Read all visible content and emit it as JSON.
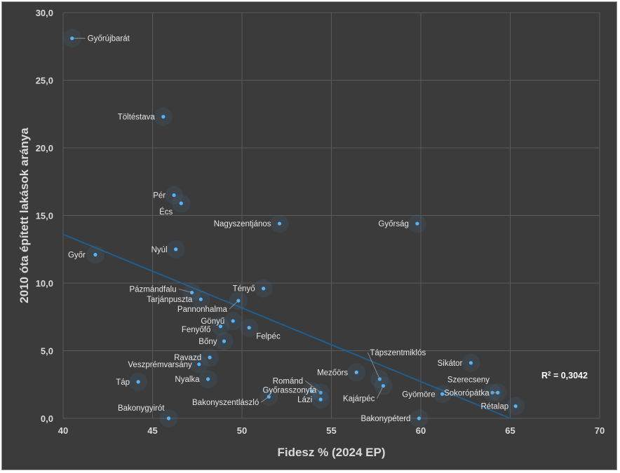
{
  "chart_data": {
    "type": "scatter",
    "xlabel": "Fidesz % (2024 EP)",
    "ylabel": "2010 óta épített lakások aránya",
    "xlim": [
      40,
      70
    ],
    "ylim": [
      0,
      30
    ],
    "xticks": [
      "40",
      "45",
      "50",
      "55",
      "60",
      "65",
      "70"
    ],
    "yticks": [
      "0,0",
      "5,0",
      "10,0",
      "15,0",
      "20,0",
      "25,0",
      "30,0"
    ],
    "trendline": {
      "type": "linear",
      "r2_prefix": "R",
      "r2_sup": "2",
      "r2_value": " = 0,3042"
    },
    "points": [
      {
        "name": "Győrújbarát",
        "x": 40.5,
        "y": 28.1
      },
      {
        "name": "Töltéstava",
        "x": 45.6,
        "y": 22.3
      },
      {
        "name": "Pér",
        "x": 46.2,
        "y": 16.5
      },
      {
        "name": "Écs",
        "x": 46.6,
        "y": 15.9
      },
      {
        "name": "Nagyszentjános",
        "x": 52.1,
        "y": 14.4
      },
      {
        "name": "Győrság",
        "x": 59.8,
        "y": 14.4
      },
      {
        "name": "Nyúl",
        "x": 46.3,
        "y": 12.5
      },
      {
        "name": "Győr",
        "x": 41.8,
        "y": 12.1
      },
      {
        "name": "Pázmándfalu",
        "x": 47.2,
        "y": 9.3
      },
      {
        "name": "Tényő",
        "x": 51.2,
        "y": 9.6
      },
      {
        "name": "Tarjánpuszta",
        "x": 47.7,
        "y": 8.8
      },
      {
        "name": "Pannonhalma",
        "x": 49.8,
        "y": 8.7
      },
      {
        "name": "Gönyű",
        "x": 49.5,
        "y": 7.2
      },
      {
        "name": "Fenyőfő",
        "x": 48.8,
        "y": 6.8
      },
      {
        "name": "Felpéc",
        "x": 50.4,
        "y": 6.7
      },
      {
        "name": "Bőny",
        "x": 49.0,
        "y": 5.7
      },
      {
        "name": "Ravazd",
        "x": 48.2,
        "y": 4.5
      },
      {
        "name": "Veszprémvarsány",
        "x": 47.6,
        "y": 4.0
      },
      {
        "name": "Tápszentmiklós",
        "x": 57.7,
        "y": 2.9
      },
      {
        "name": "Sikátor",
        "x": 62.8,
        "y": 4.1
      },
      {
        "name": "Mezőörs",
        "x": 56.4,
        "y": 3.4
      },
      {
        "name": "Nyalka",
        "x": 48.1,
        "y": 2.9
      },
      {
        "name": "Táp",
        "x": 44.2,
        "y": 2.7
      },
      {
        "name": "Románd",
        "x": 54.4,
        "y": 1.9
      },
      {
        "name": "Kajárpéc",
        "x": 57.9,
        "y": 2.4
      },
      {
        "name": "Győrasszonyfa",
        "x": 53.9,
        "y": 2.0
      },
      {
        "name": "Gyömöre",
        "x": 61.2,
        "y": 1.8
      },
      {
        "name": "Szerecseny",
        "x": 64.0,
        "y": 1.9
      },
      {
        "name": "Sokorópátka",
        "x": 64.3,
        "y": 1.9
      },
      {
        "name": "Bakonyszentlászló",
        "x": 51.5,
        "y": 1.6
      },
      {
        "name": "Lázi",
        "x": 54.4,
        "y": 1.4
      },
      {
        "name": "Rétalap",
        "x": 65.3,
        "y": 0.9
      },
      {
        "name": "Bakonygyirót",
        "x": 45.9,
        "y": 0.0
      },
      {
        "name": "Bakonypéterd",
        "x": 59.9,
        "y": 0.0
      }
    ]
  }
}
